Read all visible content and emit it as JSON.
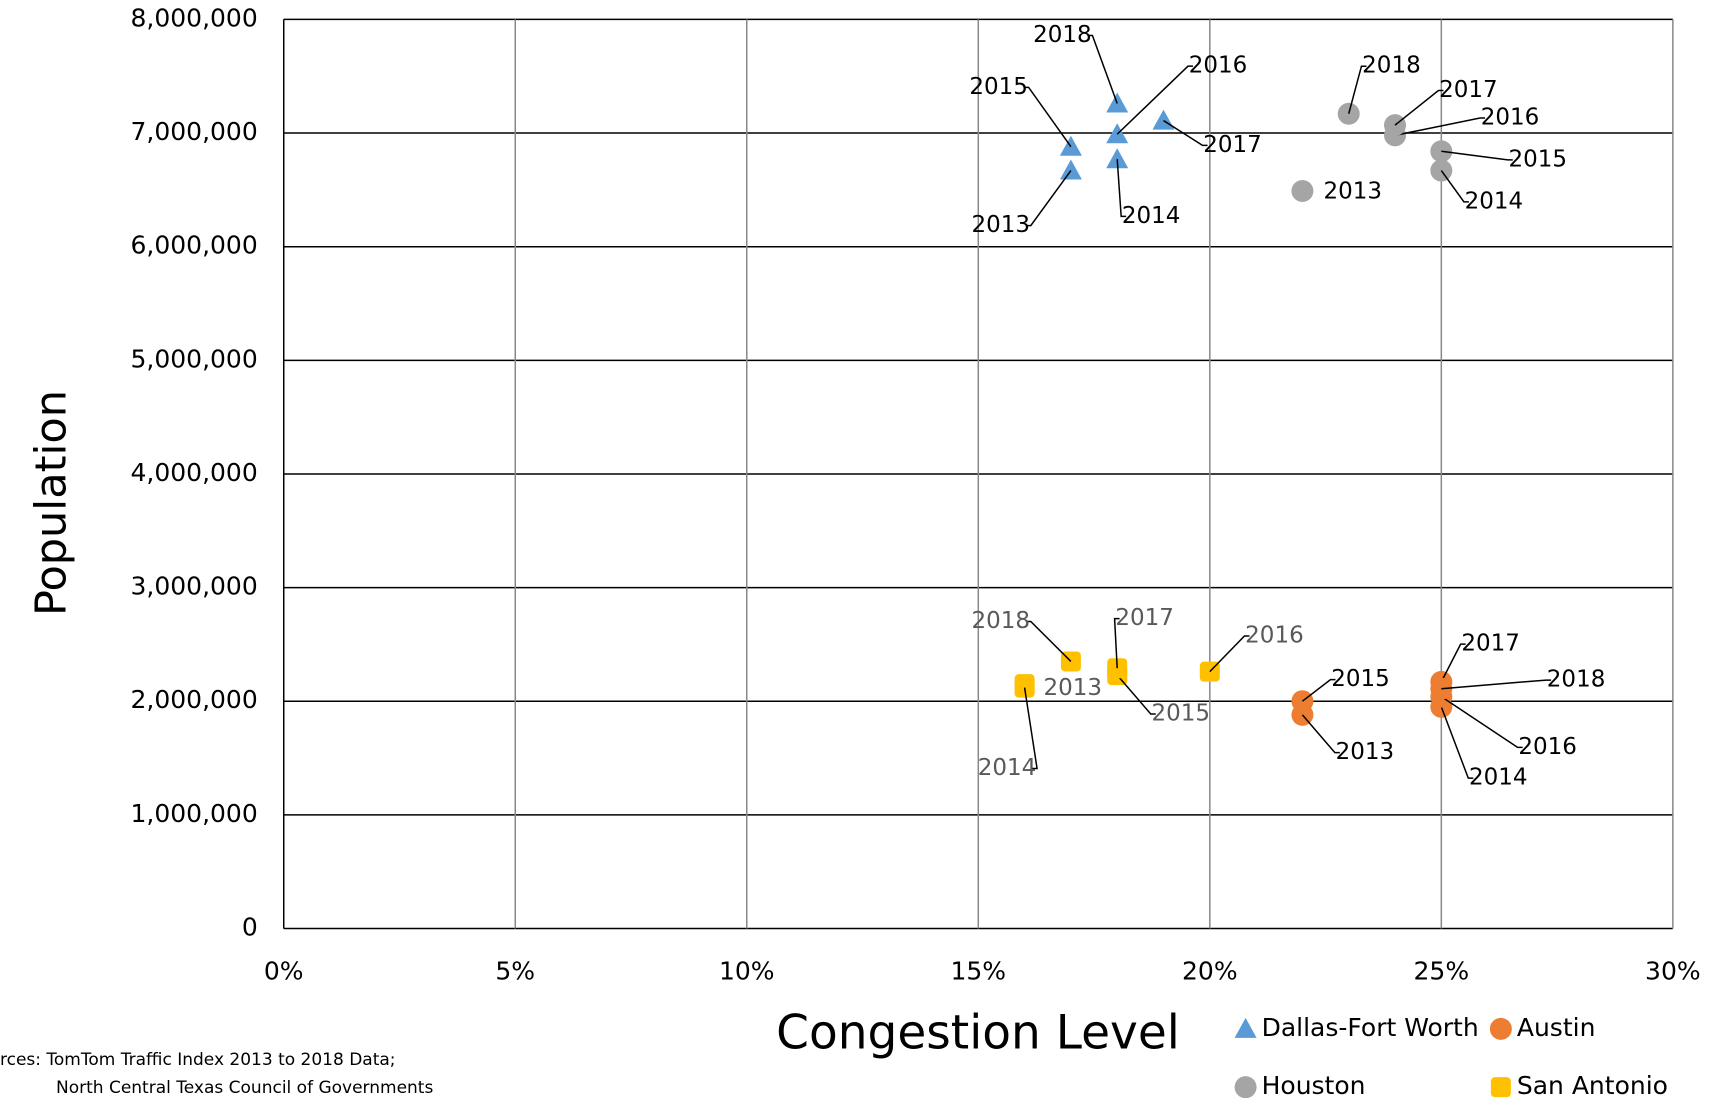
{
  "chart_data": {
    "type": "scatter",
    "x_label": "Congestion Level",
    "y_label": "Population",
    "notes": [
      "rces:  TomTom Traffic Index 2013 to 2018 Data;",
      "North Central Texas Council of Governments"
    ],
    "xlim": [
      0,
      30
    ],
    "xticks": [
      {
        "value": 0,
        "label": "0%"
      },
      {
        "value": 5,
        "label": "5%"
      },
      {
        "value": 10,
        "label": "10%"
      },
      {
        "value": 15,
        "label": "15%"
      },
      {
        "value": 20,
        "label": "20%"
      },
      {
        "value": 25,
        "label": "25%"
      },
      {
        "value": 30,
        "label": "30%"
      }
    ],
    "ylim": [
      0,
      8000000
    ],
    "yticks": [
      0,
      {
        "value": 1000000,
        "label": "1,000,000"
      },
      {
        "value": 2000000,
        "label": "2,000,000"
      },
      {
        "value": 3000000,
        "label": "3,000,000"
      },
      {
        "value": 4000000,
        "label": "4,000,000"
      },
      {
        "value": 5000000,
        "label": "5,000,000"
      },
      {
        "value": 6000000,
        "label": "6,000,000"
      },
      {
        "value": 7000000,
        "label": "7,000,000"
      },
      {
        "value": 8000000,
        "label": "8,000,000"
      }
    ],
    "grid": true,
    "legend": "bottom-right",
    "series": [
      {
        "name": "Dallas-Fort Worth",
        "color": "#5b9bd5",
        "marker": "triangle",
        "labels": [
          "2013",
          "2014",
          "2015",
          "2016",
          "2017",
          "2018"
        ],
        "x": [
          17,
          18,
          17,
          18,
          19,
          18
        ],
        "values": [
          6670000,
          6770000,
          6880000,
          6990000,
          7110000,
          7260000
        ]
      },
      {
        "name": "Austin",
        "color": "#ed7d31",
        "marker": "circle",
        "labels": [
          "2013",
          "2014",
          "2015",
          "2016",
          "2017",
          "2018"
        ],
        "x": [
          22,
          25,
          22,
          25,
          25,
          25
        ],
        "values": [
          1880000,
          1950000,
          2000000,
          2040000,
          2170000,
          2110000
        ]
      },
      {
        "name": "Houston",
        "color": "#a5a5a5",
        "marker": "circle",
        "labels": [
          "2013",
          "2014",
          "2015",
          "2016",
          "2017",
          "2018"
        ],
        "x": [
          22,
          25,
          25,
          24,
          24,
          23
        ],
        "values": [
          6490000,
          6670000,
          6840000,
          6980000,
          7070000,
          7170000
        ]
      },
      {
        "name": "San Antonio",
        "color": "#ffc000",
        "marker": "square",
        "labels": [
          "2013",
          "2014",
          "2015",
          "2016",
          "2017",
          "2018"
        ],
        "x": [
          16,
          16,
          18,
          20,
          18,
          17
        ],
        "values": [
          2150000,
          2120000,
          2230000,
          2260000,
          2290000,
          2350000
        ]
      }
    ]
  }
}
